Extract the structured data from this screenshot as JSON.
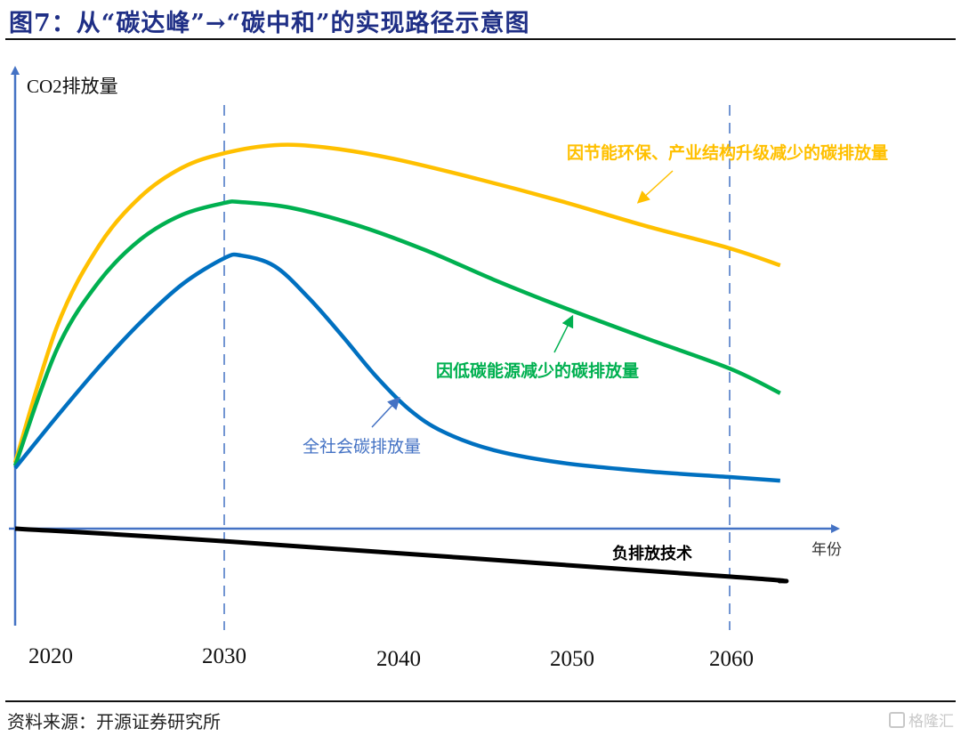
{
  "figure": {
    "title": "图7：从“碳达峰”→“碳中和”的实现路径示意图",
    "source": "资料来源：开源证券研究所",
    "watermark": "格隆汇"
  },
  "chart_data": {
    "type": "line",
    "title": "从“碳达峰”→“碳中和”的实现路径示意图",
    "xlabel": "年份",
    "ylabel": "CO2排放量",
    "xlim": [
      2020,
      2066
    ],
    "ylim": [
      -20,
      100
    ],
    "x_ticks": [
      {
        "value": 2020,
        "label": "2020"
      },
      {
        "value": 2030,
        "label": "2030"
      },
      {
        "value": 2040,
        "label": "2040"
      },
      {
        "value": 2050,
        "label": "2050"
      },
      {
        "value": 2060,
        "label": "2060"
      }
    ],
    "reference_lines": [
      {
        "x": 2030,
        "style": "dashed",
        "meaning": "碳达峰"
      },
      {
        "x": 2060,
        "style": "dashed",
        "meaning": "碳中和"
      }
    ],
    "y_units": "relative (schematic, no numeric scale)",
    "grid": false,
    "series": [
      {
        "name": "因节能环保、产业结构升级减少的碳排放量",
        "color": "#ffc000",
        "x": [
          2020,
          2022,
          2024,
          2026,
          2028,
          2030,
          2033,
          2036,
          2040,
          2045,
          2050,
          2055,
          2060,
          2063
        ],
        "values": [
          14.7,
          45,
          63,
          74,
          80.5,
          83.7,
          85.5,
          85,
          82.5,
          78,
          73,
          67.5,
          62.5,
          58.7
        ]
      },
      {
        "name": "因低碳能源减少的碳排放量",
        "color": "#00b050",
        "x": [
          2020,
          2022,
          2024,
          2026,
          2028,
          2030,
          2031,
          2034,
          2038,
          2042,
          2046,
          2050,
          2055,
          2060,
          2063
        ],
        "values": [
          14,
          40,
          55,
          64.5,
          70,
          72.6,
          72.8,
          71.5,
          67.5,
          62,
          55.5,
          49.5,
          42.5,
          35.7,
          30.2
        ]
      },
      {
        "name": "全社会碳排放量",
        "color": "#0070c0",
        "x": [
          2020,
          2022,
          2024,
          2026,
          2028,
          2030,
          2031,
          2033,
          2035,
          2037,
          2039,
          2041,
          2043,
          2046,
          2050,
          2055,
          2060,
          2063
        ],
        "values": [
          13.5,
          25,
          36,
          46,
          54.5,
          60.3,
          60.9,
          58.5,
          51.5,
          43,
          34,
          26.5,
          21.6,
          17.5,
          14.7,
          12.8,
          11.5,
          10.7
        ]
      },
      {
        "name": "负排放技术",
        "color": "#000000",
        "x": [
          2020,
          2030,
          2060,
          2063
        ],
        "values": [
          0,
          -2.8,
          -10.7,
          -11.7
        ]
      }
    ],
    "annotations": [
      {
        "text": "因节能环保、产业结构升级减少的碳排放量",
        "color": "#ffc000",
        "points_to": "yellow curve ~2052"
      },
      {
        "text": "因低碳能源减少的碳排放量",
        "color": "#00b050",
        "points_to": "green curve ~2051"
      },
      {
        "text": "全社会碳排放量",
        "color": "#4472c4",
        "points_to": "blue curve ~2041"
      },
      {
        "text": "负排放技术",
        "color": "#000000",
        "points_to": "black line"
      }
    ]
  }
}
